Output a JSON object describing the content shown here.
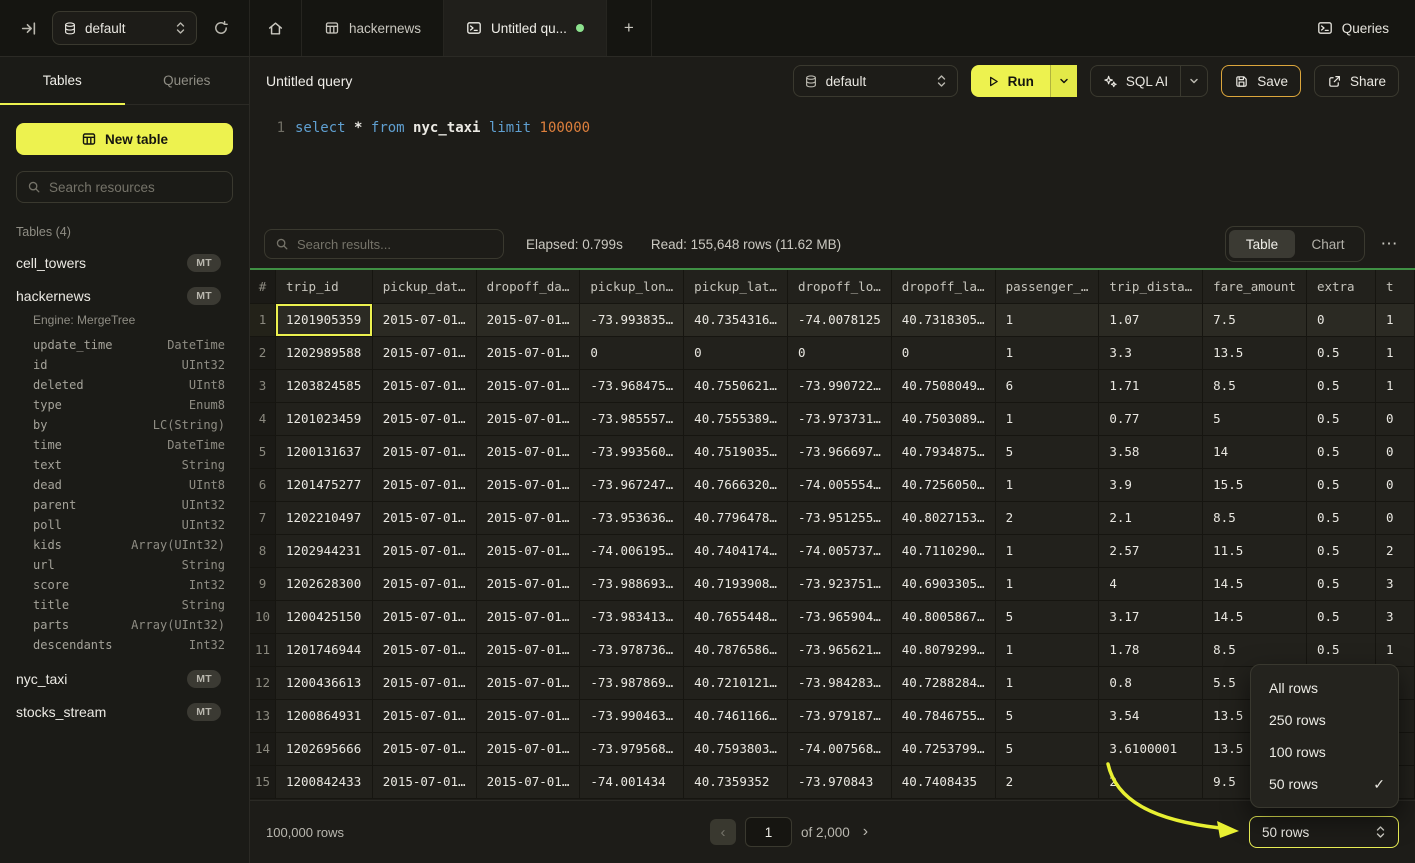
{
  "colors": {
    "accent": "#edf24f",
    "table_top_border": "#3f9044",
    "save_border": "#dca63c",
    "tab_dot": "#8ce28e",
    "arrow": "#e8f032"
  },
  "icons": {
    "more": "⋯",
    "check": "✓",
    "plus": "+",
    "prev": "‹",
    "next": "›"
  },
  "topbar": {
    "database": "default",
    "tab_hackernews": "hackernews",
    "tab_query": "Untitled qu...",
    "queries_button": "Queries"
  },
  "sidebar": {
    "tab_tables": "Tables",
    "tab_queries": "Queries",
    "new_table": "New table",
    "search_placeholder": "Search resources",
    "section": "Tables (4)",
    "tables": [
      {
        "name": "cell_towers",
        "badge": "MT"
      },
      {
        "name": "hackernews",
        "badge": "MT",
        "engine": "Engine: MergeTree",
        "columns": [
          [
            "update_time",
            "DateTime"
          ],
          [
            "id",
            "UInt32"
          ],
          [
            "deleted",
            "UInt8"
          ],
          [
            "type",
            "Enum8"
          ],
          [
            "by",
            "LC(String)"
          ],
          [
            "time",
            "DateTime"
          ],
          [
            "text",
            "String"
          ],
          [
            "dead",
            "UInt8"
          ],
          [
            "parent",
            "UInt32"
          ],
          [
            "poll",
            "UInt32"
          ],
          [
            "kids",
            "Array(UInt32)"
          ],
          [
            "url",
            "String"
          ],
          [
            "score",
            "Int32"
          ],
          [
            "title",
            "String"
          ],
          [
            "parts",
            "Array(UInt32)"
          ],
          [
            "descendants",
            "Int32"
          ]
        ]
      },
      {
        "name": "nyc_taxi",
        "badge": "MT"
      },
      {
        "name": "stocks_stream",
        "badge": "MT"
      }
    ]
  },
  "toolbar": {
    "title": "Untitled query",
    "database": "default",
    "run": "Run",
    "sql_ai": "SQL AI",
    "save": "Save",
    "share": "Share"
  },
  "editor": {
    "line": "1",
    "tokens": [
      {
        "text": "select",
        "type": "kw"
      },
      {
        "text": " ",
        "type": "plain"
      },
      {
        "text": "*",
        "type": "star"
      },
      {
        "text": " ",
        "type": "plain"
      },
      {
        "text": "from",
        "type": "kw"
      },
      {
        "text": " ",
        "type": "plain"
      },
      {
        "text": "nyc_taxi",
        "type": "ident"
      },
      {
        "text": " ",
        "type": "plain"
      },
      {
        "text": "limit",
        "type": "kw"
      },
      {
        "text": " ",
        "type": "plain"
      },
      {
        "text": "100000",
        "type": "num"
      }
    ]
  },
  "results": {
    "search_placeholder": "Search results...",
    "elapsed": "Elapsed: 0.799s",
    "read": "Read: 155,648 rows (11.62 MB)",
    "tab_table": "Table",
    "tab_chart": "Chart"
  },
  "table": {
    "columns": [
      "#",
      "trip_id",
      "pickup_dat…",
      "dropoff_da…",
      "pickup_lon…",
      "pickup_lat…",
      "dropoff_lo…",
      "dropoff_la…",
      "passenger_…",
      "trip_dista…",
      "fare_amount",
      "extra",
      "t"
    ],
    "rows": [
      [
        "1",
        "1201905359",
        "2015-07-01…",
        "2015-07-01…",
        "-73.993835…",
        "40.7354316…",
        "-74.0078125",
        "40.7318305…",
        "1",
        "1.07",
        "7.5",
        "0",
        "1"
      ],
      [
        "2",
        "1202989588",
        "2015-07-01…",
        "2015-07-01…",
        "0",
        "0",
        "0",
        "0",
        "1",
        "3.3",
        "13.5",
        "0.5",
        "1"
      ],
      [
        "3",
        "1203824585",
        "2015-07-01…",
        "2015-07-01…",
        "-73.968475…",
        "40.7550621…",
        "-73.990722…",
        "40.7508049…",
        "6",
        "1.71",
        "8.5",
        "0.5",
        "1"
      ],
      [
        "4",
        "1201023459",
        "2015-07-01…",
        "2015-07-01…",
        "-73.985557…",
        "40.7555389…",
        "-73.973731…",
        "40.7503089…",
        "1",
        "0.77",
        "5",
        "0.5",
        "0"
      ],
      [
        "5",
        "1200131637",
        "2015-07-01…",
        "2015-07-01…",
        "-73.993560…",
        "40.7519035…",
        "-73.966697…",
        "40.7934875…",
        "5",
        "3.58",
        "14",
        "0.5",
        "0"
      ],
      [
        "6",
        "1201475277",
        "2015-07-01…",
        "2015-07-01…",
        "-73.967247…",
        "40.7666320…",
        "-74.005554…",
        "40.7256050…",
        "1",
        "3.9",
        "15.5",
        "0.5",
        "0"
      ],
      [
        "7",
        "1202210497",
        "2015-07-01…",
        "2015-07-01…",
        "-73.953636…",
        "40.7796478…",
        "-73.951255…",
        "40.8027153…",
        "2",
        "2.1",
        "8.5",
        "0.5",
        "0"
      ],
      [
        "8",
        "1202944231",
        "2015-07-01…",
        "2015-07-01…",
        "-74.006195…",
        "40.7404174…",
        "-74.005737…",
        "40.7110290…",
        "1",
        "2.57",
        "11.5",
        "0.5",
        "2"
      ],
      [
        "9",
        "1202628300",
        "2015-07-01…",
        "2015-07-01…",
        "-73.988693…",
        "40.7193908…",
        "-73.923751…",
        "40.6903305…",
        "1",
        "4",
        "14.5",
        "0.5",
        "3"
      ],
      [
        "10",
        "1200425150",
        "2015-07-01…",
        "2015-07-01…",
        "-73.983413…",
        "40.7655448…",
        "-73.965904…",
        "40.8005867…",
        "5",
        "3.17",
        "14.5",
        "0.5",
        "3"
      ],
      [
        "11",
        "1201746944",
        "2015-07-01…",
        "2015-07-01…",
        "-73.978736…",
        "40.7876586…",
        "-73.965621…",
        "40.8079299…",
        "1",
        "1.78",
        "8.5",
        "0.5",
        "1"
      ],
      [
        "12",
        "1200436613",
        "2015-07-01…",
        "2015-07-01…",
        "-73.987869…",
        "40.7210121…",
        "-73.984283…",
        "40.7288284…",
        "1",
        "0.8",
        "5.5",
        "",
        ""
      ],
      [
        "13",
        "1200864931",
        "2015-07-01…",
        "2015-07-01…",
        "-73.990463…",
        "40.7461166…",
        "-73.979187…",
        "40.7846755…",
        "5",
        "3.54",
        "13.5",
        "",
        ""
      ],
      [
        "14",
        "1202695666",
        "2015-07-01…",
        "2015-07-01…",
        "-73.979568…",
        "40.7593803…",
        "-74.007568…",
        "40.7253799…",
        "5",
        "3.6100001",
        "13.5",
        "",
        ""
      ],
      [
        "15",
        "1200842433",
        "2015-07-01…",
        "2015-07-01…",
        "-74.001434",
        "40.7359352",
        "-73.970843",
        "40.7408435",
        "2",
        "2",
        "9.5",
        "",
        ""
      ]
    ]
  },
  "rows_menu": {
    "items": [
      {
        "label": "All rows",
        "checked": false
      },
      {
        "label": "250 rows",
        "checked": false
      },
      {
        "label": "100 rows",
        "checked": false
      },
      {
        "label": "50 rows",
        "checked": true
      }
    ]
  },
  "footer": {
    "total": "100,000 rows",
    "page_value": "1",
    "page_of": "of 2,000",
    "page_size": "50 rows"
  }
}
